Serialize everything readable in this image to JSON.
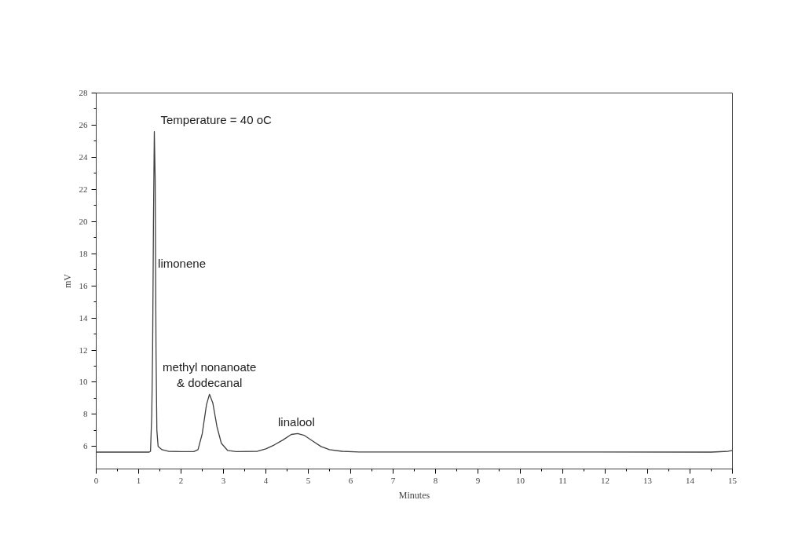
{
  "chart_data": {
    "type": "line",
    "xlabel": "Minutes",
    "ylabel": "mV",
    "color": "#404040",
    "x": [
      0,
      1.25,
      1.28,
      1.31,
      1.33,
      1.35,
      1.37,
      1.39,
      1.41,
      1.43,
      1.46,
      1.55,
      1.7,
      2.0,
      2.3,
      2.4,
      2.5,
      2.6,
      2.67,
      2.75,
      2.85,
      2.95,
      3.1,
      3.3,
      3.8,
      4.0,
      4.2,
      4.4,
      4.6,
      4.75,
      4.9,
      5.1,
      5.3,
      5.5,
      5.8,
      6.2,
      14.5,
      14.9,
      15
    ],
    "values": [
      5.65,
      5.65,
      5.7,
      8,
      12,
      20,
      25.6,
      22.6,
      12,
      7,
      6.0,
      5.8,
      5.7,
      5.68,
      5.68,
      5.8,
      6.8,
      8.6,
      9.25,
      8.7,
      7.2,
      6.2,
      5.75,
      5.68,
      5.7,
      5.85,
      6.1,
      6.4,
      6.75,
      6.8,
      6.7,
      6.35,
      6.0,
      5.8,
      5.7,
      5.66,
      5.65,
      5.7,
      5.75
    ],
    "xlim": [
      0,
      15
    ],
    "xticks": [
      0,
      1,
      2,
      3,
      4,
      5,
      6,
      7,
      8,
      9,
      10,
      11,
      12,
      13,
      14,
      15
    ],
    "ylim": [
      4.6,
      28
    ],
    "yticks": [
      6,
      8,
      10,
      12,
      14,
      16,
      18,
      20,
      22,
      24,
      26,
      28
    ],
    "grid": false,
    "marker": "none",
    "line_style": "solid",
    "annotations": [
      "Temperature = 40 oC",
      {
        "text": "limonene",
        "x": 1.4,
        "y": 17.7
      },
      {
        "text": "methyl nonanoate\n& dodecanal",
        "x": 2.67,
        "y": 9.25
      },
      {
        "text": "linalool",
        "x": 4.72,
        "y": 6.8
      }
    ]
  }
}
